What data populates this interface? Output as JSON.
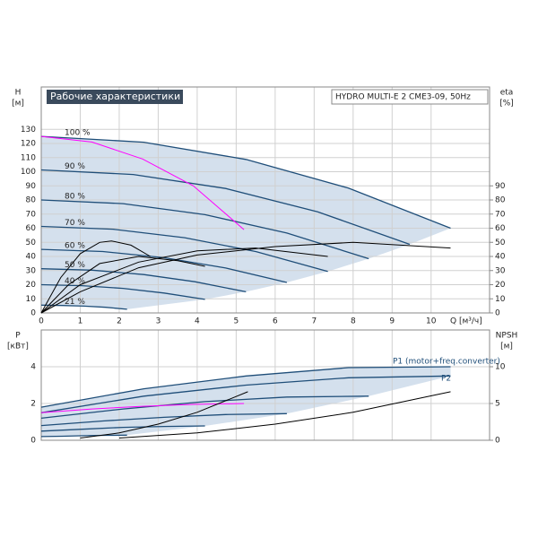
{
  "chart_data": [
    {
      "type": "line",
      "title": "Рабочие характеристики",
      "subtitle": "HYDRO MULTI-E 2 CME3-09, 50Hz",
      "y_label": "H",
      "y_unit": "[м]",
      "y2_label": "eta",
      "y2_unit": "[%]",
      "x_label": "Q [м³/ч]",
      "xlim": [
        0,
        11.5
      ],
      "xticks": [
        0,
        1,
        2,
        3,
        4,
        5,
        6,
        7,
        8,
        9,
        10
      ],
      "ylim": [
        0,
        160
      ],
      "yticks": [
        0,
        10,
        20,
        30,
        40,
        50,
        60,
        70,
        80,
        90,
        100,
        110,
        120,
        130
      ],
      "y2lim": [
        0,
        160
      ],
      "y2ticks": [
        0,
        10,
        20,
        30,
        40,
        50,
        60,
        70,
        80,
        90
      ],
      "grid": true,
      "series": [
        {
          "name": "100 %",
          "color": "#1f4e79",
          "x": [
            0,
            2.63,
            5.25,
            7.88,
            10.5
          ],
          "values": [
            125,
            120.9,
            108.7,
            88.4,
            60
          ]
        },
        {
          "name": "90 %",
          "color": "#1f4e79",
          "x": [
            0,
            2.36,
            4.73,
            7.09,
            9.45
          ],
          "values": [
            101.3,
            98,
            88.1,
            71.6,
            48.6
          ]
        },
        {
          "name": "80 %",
          "color": "#1f4e79",
          "x": [
            0,
            2.1,
            4.2,
            6.3,
            8.4
          ],
          "values": [
            80,
            77.4,
            69.6,
            56.6,
            38.4
          ]
        },
        {
          "name": "70 %",
          "color": "#1f4e79",
          "x": [
            0,
            1.84,
            3.68,
            5.51,
            7.35
          ],
          "values": [
            61.3,
            59.3,
            53.3,
            43.4,
            29.4
          ]
        },
        {
          "name": "60 %",
          "color": "#1f4e79",
          "x": [
            0,
            1.58,
            3.15,
            4.73,
            6.3
          ],
          "values": [
            45,
            43.5,
            39.1,
            31.8,
            21.6
          ]
        },
        {
          "name": "50 %",
          "color": "#1f4e79",
          "x": [
            0,
            1.31,
            2.63,
            3.94,
            5.25
          ],
          "values": [
            31.3,
            30.3,
            27.2,
            22.1,
            15
          ]
        },
        {
          "name": "40 %",
          "color": "#1f4e79",
          "x": [
            0,
            1.05,
            2.1,
            3.15,
            4.2
          ],
          "values": [
            20,
            19.3,
            17.4,
            14.1,
            9.6
          ]
        },
        {
          "name": "21 %",
          "color": "#1f4e79",
          "x": [
            0,
            0.55,
            1.1,
            1.65,
            2.2
          ],
          "values": [
            5.5,
            5.3,
            4.8,
            4,
            2.6
          ]
        },
        {
          "color": "#ff00ff",
          "x": [
            0,
            1.3,
            2.6,
            3.9,
            5.2
          ],
          "values": [
            125,
            121,
            109,
            90,
            59
          ]
        },
        {
          "color": "#000000",
          "axis": "y2",
          "x": [
            0,
            1,
            2.5,
            4,
            6,
            8,
            10.5
          ],
          "values": [
            0,
            15,
            32,
            41,
            47,
            50,
            46
          ]
        },
        {
          "color": "#000000",
          "axis": "y2",
          "x": [
            0,
            1,
            2.5,
            4,
            5.5,
            7.35
          ],
          "values": [
            0,
            20,
            36,
            44,
            46,
            40
          ]
        },
        {
          "color": "#000000",
          "axis": "y2",
          "x": [
            0,
            0.7,
            1.5,
            2.5,
            3.5,
            4.2
          ],
          "values": [
            0,
            20,
            35,
            40,
            37,
            33
          ]
        },
        {
          "color": "#000000",
          "axis": "y2",
          "x": [
            0,
            0.5,
            1,
            1.5,
            1.8,
            2.3,
            2.8
          ],
          "values": [
            0,
            25,
            42,
            50,
            51,
            48,
            40
          ]
        }
      ]
    },
    {
      "type": "line",
      "y_label": "P",
      "y_unit": "[кВт]",
      "y2_label": "NPSH",
      "y2_unit": "[м]",
      "annotations": [
        "P1 (motor+freq.converter)",
        "P2"
      ],
      "xlim": [
        0,
        11.5
      ],
      "xticks": [
        0,
        1,
        2,
        3,
        4,
        5,
        6,
        7,
        8,
        9,
        10
      ],
      "ylim": [
        0,
        6
      ],
      "yticks": [
        0,
        2,
        4
      ],
      "y2lim": [
        0,
        15
      ],
      "y2ticks": [
        0,
        5,
        10
      ],
      "grid": true,
      "series": [
        {
          "color": "#1f4e79",
          "x": [
            0,
            2.63,
            5.25,
            7.88,
            10.5
          ],
          "values": [
            1.8,
            2.8,
            3.5,
            3.95,
            4
          ]
        },
        {
          "color": "#1f4e79",
          "x": [
            0,
            2.63,
            5.25,
            7.88,
            10.5
          ],
          "values": [
            1.5,
            2.4,
            3,
            3.4,
            3.5
          ]
        },
        {
          "color": "#1f4e79",
          "x": [
            0,
            2.1,
            4.2,
            6.3,
            8.4
          ],
          "values": [
            1.2,
            1.7,
            2.1,
            2.35,
            2.4
          ]
        },
        {
          "color": "#1f4e79",
          "x": [
            0,
            1.58,
            3.15,
            4.73,
            6.3
          ],
          "values": [
            0.8,
            1.05,
            1.25,
            1.4,
            1.45
          ]
        },
        {
          "color": "#1f4e79",
          "x": [
            0,
            1.05,
            2.1,
            3.15,
            4.2
          ],
          "values": [
            0.5,
            0.6,
            0.7,
            0.75,
            0.78
          ]
        },
        {
          "color": "#1f4e79",
          "x": [
            0,
            0.55,
            1.1,
            1.65,
            2.2
          ],
          "values": [
            0.2,
            0.22,
            0.25,
            0.27,
            0.28
          ]
        },
        {
          "color": "#ff00ff",
          "x": [
            0,
            1.3,
            2.6,
            3.9,
            5.2
          ],
          "values": [
            1.5,
            1.7,
            1.85,
            1.95,
            2
          ]
        },
        {
          "color": "#000000",
          "axis": "y2",
          "x": [
            2,
            4,
            6,
            8,
            10.5
          ],
          "values": [
            0.3,
            1,
            2.2,
            3.8,
            6.6
          ]
        },
        {
          "color": "#000000",
          "axis": "y2",
          "x": [
            1,
            2,
            3,
            4,
            5.3
          ],
          "values": [
            0.3,
            1,
            2.2,
            3.8,
            6.6
          ]
        }
      ]
    }
  ]
}
